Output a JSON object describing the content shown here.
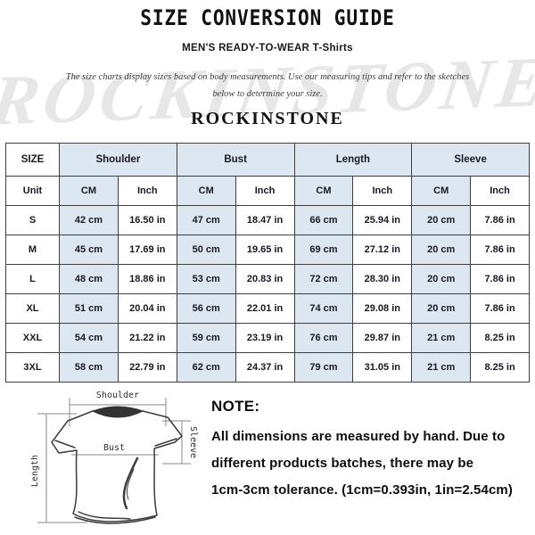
{
  "header": {
    "title": "SIZE CONVERSION GUIDE",
    "subtitle": "MEN'S READY-TO-WEAR T-Shirts",
    "description_line1": "The size charts display sizes based on body measurements. Use our measuring tips and refer to the sketches",
    "description_line2": "below to determine your size.",
    "brand": "ROCKINSTONE",
    "watermark": "ROCKINSTONE"
  },
  "table": {
    "size_header": "SIZE",
    "groups": [
      "Shoulder",
      "Bust",
      "Length",
      "Sleeve"
    ],
    "unit_label": "Unit",
    "unit_cols": [
      "CM",
      "Inch",
      "CM",
      "Inch",
      "CM",
      "Inch",
      "CM",
      "Inch"
    ],
    "rows": [
      {
        "size": "S",
        "cells": [
          "42 cm",
          "16.50 in",
          "47 cm",
          "18.47 in",
          "66 cm",
          "25.94 in",
          "20 cm",
          "7.86 in"
        ]
      },
      {
        "size": "M",
        "cells": [
          "45 cm",
          "17.69 in",
          "50 cm",
          "19.65 in",
          "69 cm",
          "27.12 in",
          "20 cm",
          "7.86 in"
        ]
      },
      {
        "size": "L",
        "cells": [
          "48 cm",
          "18.86 in",
          "53 cm",
          "20.83 in",
          "72 cm",
          "28.30 in",
          "20 cm",
          "7.86 in"
        ]
      },
      {
        "size": "XL",
        "cells": [
          "51 cm",
          "20.04 in",
          "56 cm",
          "22.01 in",
          "74 cm",
          "29.08 in",
          "20 cm",
          "7.86 in"
        ]
      },
      {
        "size": "XXL",
        "cells": [
          "54 cm",
          "21.22 in",
          "59 cm",
          "23.19 in",
          "76 cm",
          "29.87 in",
          "21 cm",
          "8.25 in"
        ]
      },
      {
        "size": "3XL",
        "cells": [
          "58 cm",
          "22.79 in",
          "62 cm",
          "24.37 in",
          "79 cm",
          "31.05 in",
          "21 cm",
          "8.25 in"
        ]
      }
    ]
  },
  "diagram": {
    "shoulder_label": "Shoulder",
    "bust_label": "Bust",
    "length_label": "Length",
    "sleeve_label": "Sleeve"
  },
  "note": {
    "title": "NOTE:",
    "lines": [
      "All dimensions are measured by hand. Due to",
      "different products batches, there may be",
      "1cm-3cm tolerance. (1cm=0.393in, 1in=2.54cm)"
    ]
  },
  "colors": {
    "header_cell_bg": "#dde7f2",
    "table_border": "#3f3f3f",
    "text": "#16161e",
    "watermark": "#e7e7e7"
  }
}
